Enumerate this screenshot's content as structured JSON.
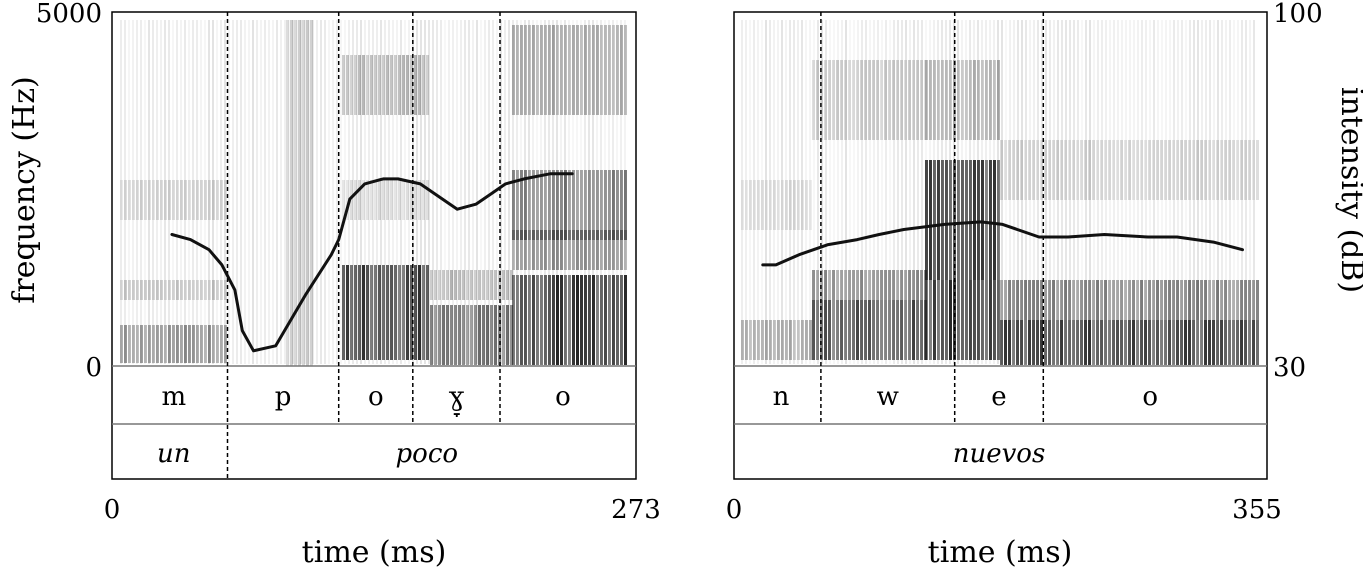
{
  "chart_data": [
    {
      "type": "spectrogram",
      "xlabel": "time (ms)",
      "ylabel": "frequency (Hz)",
      "xlim": [
        0,
        273
      ],
      "ylim": [
        0,
        5000
      ],
      "x_ticks": [
        "0",
        "273"
      ],
      "y_ticks": [
        "0",
        "5000"
      ],
      "segment_tier": [
        {
          "label": "m",
          "start": 0,
          "end": 58
        },
        {
          "label": "p",
          "start": 58,
          "end": 118
        },
        {
          "label": "o",
          "start": 118,
          "end": 158
        },
        {
          "label": "ɣ̞",
          "start": 158,
          "end": 205
        },
        {
          "label": "o",
          "start": 205,
          "end": 273
        }
      ],
      "word_tier": [
        {
          "label": "un",
          "start": 0,
          "end": 58
        },
        {
          "label": "poco",
          "start": 58,
          "end": 273
        }
      ],
      "intensity_contour_db": {
        "x": [
          28,
          38,
          48,
          55,
          62,
          66,
          72,
          84,
          100,
          114,
          118,
          124,
          132,
          142,
          150,
          162,
          174,
          182,
          192,
          200,
          208,
          218,
          232,
          244
        ],
        "y": [
          56,
          55,
          53,
          50,
          45,
          37,
          33,
          34,
          44,
          52,
          55,
          63,
          66,
          67,
          67,
          66,
          63,
          61,
          62,
          64,
          66,
          67,
          68,
          68
        ]
      }
    },
    {
      "type": "spectrogram",
      "xlabel": "time (ms)",
      "ylabel": "intensity (dB)",
      "xlim": [
        0,
        355
      ],
      "ylim": [
        30,
        100
      ],
      "x_ticks": [
        "0",
        "355"
      ],
      "y_ticks": [
        "30",
        "100"
      ],
      "segment_tier": [
        {
          "label": "n",
          "start": 0,
          "end": 55
        },
        {
          "label": "w",
          "start": 55,
          "end": 147
        },
        {
          "label": "e",
          "start": 147,
          "end": 208
        },
        {
          "label": "o",
          "start": 208,
          "end": 355
        }
      ],
      "word_tier": [
        {
          "label": "nuevos",
          "start": 0,
          "end": 355
        }
      ],
      "intensity_contour_db": {
        "x": [
          15,
          24,
          40,
          60,
          80,
          95,
          112,
          140,
          165,
          180,
          205,
          225,
          250,
          280,
          300,
          325,
          345
        ],
        "y": [
          50,
          50,
          52,
          54,
          55,
          56,
          57,
          58,
          58.5,
          58,
          55.5,
          55.5,
          56,
          55.5,
          55.5,
          54.5,
          53
        ]
      }
    }
  ]
}
